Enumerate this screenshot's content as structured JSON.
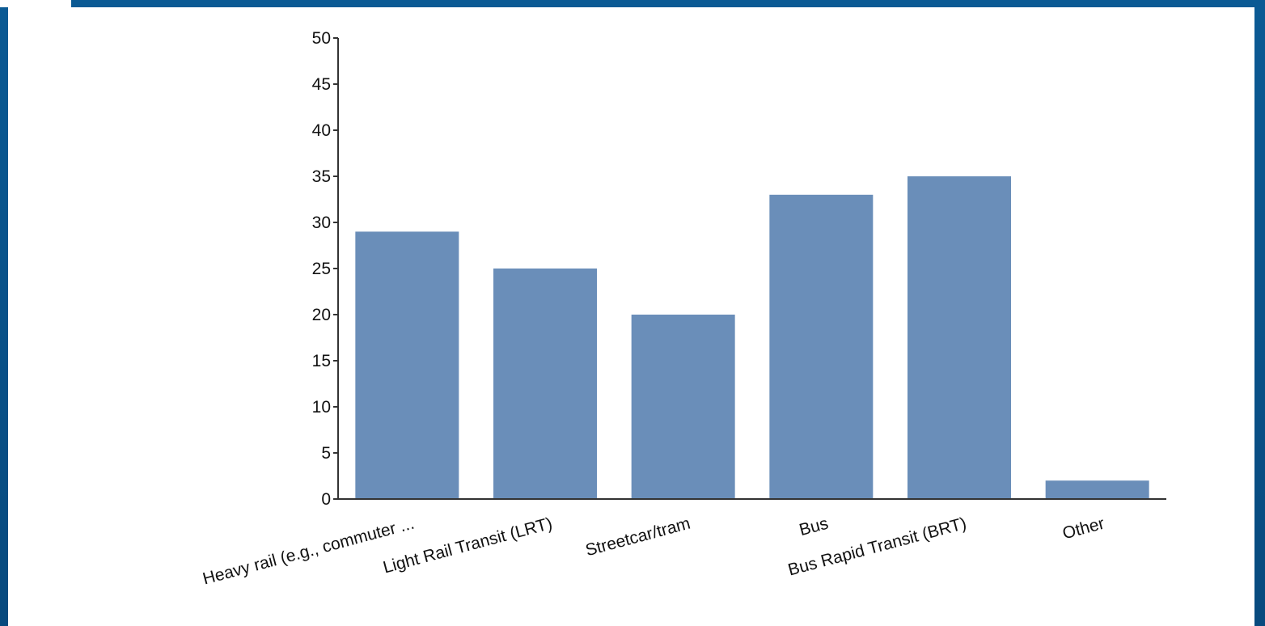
{
  "chart_data": {
    "type": "bar",
    "title": "",
    "xlabel": "",
    "ylabel": "",
    "categories": [
      "Heavy rail (e.g., commuter ...",
      "Light Rail Transit (LRT)",
      "Streetcar/tram",
      "Bus",
      "Bus Rapid Transit (BRT)",
      "Other"
    ],
    "values": [
      29,
      25,
      20,
      33,
      35,
      2
    ],
    "ylim": [
      0,
      50
    ],
    "yticks": [
      "0",
      "5",
      "10",
      "15",
      "20",
      "25",
      "30",
      "35",
      "40",
      "45",
      "50"
    ],
    "bar_color": "#6a8eb9",
    "grid": false,
    "legend": "none"
  },
  "colors": {
    "frame": "#0a4f86",
    "background": "#ffffff",
    "axis": "#333333"
  }
}
